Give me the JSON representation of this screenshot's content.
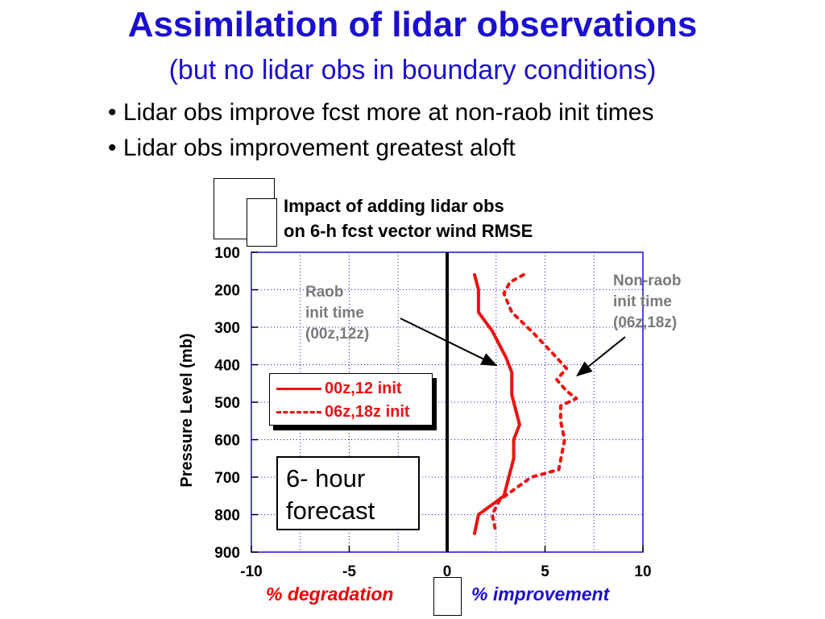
{
  "slide": {
    "title": "Assimilation of lidar observations",
    "subtitle": "(but no lidar obs in boundary conditions)",
    "bullets": [
      "Lidar obs improve fcst more at non-raob init times",
      "Lidar obs improvement greatest aloft"
    ],
    "degradation_label": "% degradation",
    "improvement_label": "% improvement",
    "forecast_box": [
      "6- hour",
      "forecast"
    ]
  },
  "colors": {
    "title": "#1a0fd0",
    "series": "#ee1111",
    "grid": "#1a0fd0",
    "annotation": "#7a7a7a"
  },
  "chart_data": {
    "type": "line",
    "title": [
      "Impact of adding lidar obs",
      "on 6-h fcst vector wind RMSE"
    ],
    "ylabel": "Pressure Level (mb)",
    "xlabel": "",
    "xlim": [
      -10,
      10
    ],
    "ylim": [
      900,
      100
    ],
    "y_inverted": true,
    "xticks": [
      -10,
      -5,
      0,
      5,
      10
    ],
    "yticks": [
      100,
      200,
      300,
      400,
      500,
      600,
      700,
      800,
      900
    ],
    "grid": true,
    "legend_position": "left",
    "series": [
      {
        "name": "00z,12 init",
        "style": "solid",
        "points": [
          {
            "x": 1.4,
            "y": 160
          },
          {
            "x": 1.6,
            "y": 200
          },
          {
            "x": 1.6,
            "y": 260
          },
          {
            "x": 2.3,
            "y": 310
          },
          {
            "x": 3.0,
            "y": 380
          },
          {
            "x": 3.3,
            "y": 420
          },
          {
            "x": 3.3,
            "y": 480
          },
          {
            "x": 3.7,
            "y": 560
          },
          {
            "x": 3.4,
            "y": 600
          },
          {
            "x": 3.4,
            "y": 650
          },
          {
            "x": 2.9,
            "y": 750
          },
          {
            "x": 1.6,
            "y": 800
          },
          {
            "x": 1.4,
            "y": 850
          }
        ]
      },
      {
        "name": "06z,18z init",
        "style": "dashed",
        "points": [
          {
            "x": 3.9,
            "y": 160
          },
          {
            "x": 3.2,
            "y": 180
          },
          {
            "x": 2.9,
            "y": 210
          },
          {
            "x": 3.3,
            "y": 260
          },
          {
            "x": 4.3,
            "y": 310
          },
          {
            "x": 5.4,
            "y": 370
          },
          {
            "x": 6.1,
            "y": 410
          },
          {
            "x": 5.6,
            "y": 440
          },
          {
            "x": 6.1,
            "y": 470
          },
          {
            "x": 6.6,
            "y": 490
          },
          {
            "x": 5.8,
            "y": 510
          },
          {
            "x": 5.8,
            "y": 550
          },
          {
            "x": 6.0,
            "y": 600
          },
          {
            "x": 5.7,
            "y": 680
          },
          {
            "x": 4.3,
            "y": 700
          },
          {
            "x": 2.7,
            "y": 760
          },
          {
            "x": 2.3,
            "y": 800
          },
          {
            "x": 2.5,
            "y": 850
          }
        ]
      }
    ],
    "zero_line": 0,
    "annotations": [
      {
        "lines": [
          "Raob",
          "init time",
          "(00z,12z)"
        ],
        "points_to": {
          "x": 2.5,
          "y": 380
        }
      },
      {
        "lines": [
          "Non-raob",
          "init time",
          "(06z,18z)"
        ],
        "points_to": {
          "x": 6.4,
          "y": 390
        }
      }
    ]
  }
}
